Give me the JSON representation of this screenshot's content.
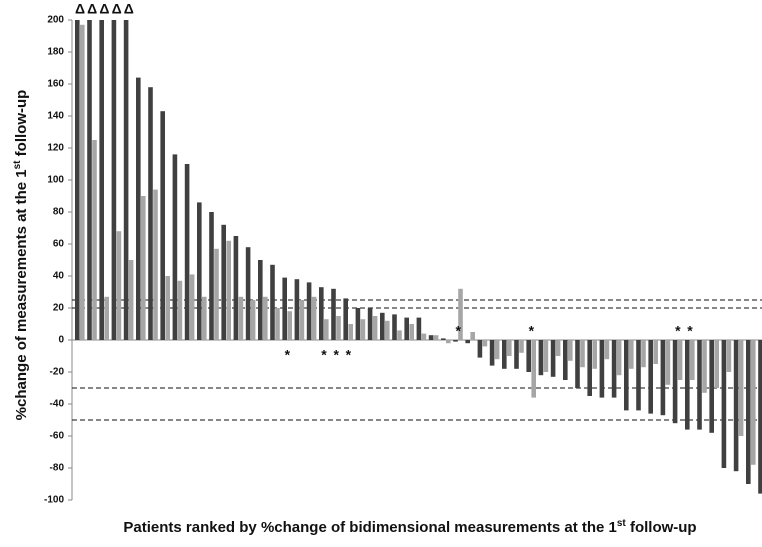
{
  "chart_data": {
    "type": "bar",
    "xlabel": [
      "Patients ranked by %change of bidimensional measurements at the 1",
      "st",
      " follow-up"
    ],
    "ylabel": [
      "%change of measurements at the 1",
      "st",
      " follow-up"
    ],
    "ylim": [
      -100,
      200
    ],
    "yticks": [
      -100,
      -80,
      -60,
      -40,
      -20,
      0,
      20,
      40,
      60,
      80,
      100,
      120,
      140,
      160,
      180,
      200
    ],
    "series": [
      {
        "color": "#404040",
        "values": [
          200,
          200,
          200,
          200,
          200,
          164,
          158,
          143,
          116,
          110,
          86,
          80,
          72,
          65,
          58,
          50,
          47,
          39,
          38,
          36,
          33,
          32,
          26,
          20,
          20,
          17,
          16,
          14,
          14,
          3,
          1,
          -1,
          -2,
          -11,
          -16,
          -18,
          -18,
          -20,
          -22,
          -23,
          -25,
          -30,
          -35,
          -36,
          -36,
          -44,
          -44,
          -46,
          -47,
          -52,
          -56,
          -56,
          -58,
          -80,
          -82,
          -90,
          -96
        ]
      },
      {
        "color": "#a6a6a6",
        "values": [
          197,
          125,
          27,
          68,
          50,
          90,
          94,
          40,
          37,
          41,
          27,
          57,
          62,
          27,
          25,
          27,
          20,
          18,
          25,
          27,
          13,
          15,
          10,
          13,
          15,
          12,
          6,
          10,
          4,
          3,
          -2,
          32,
          5,
          -4,
          -12,
          -10,
          -8,
          -36,
          -20,
          -10,
          -13,
          -17,
          -18,
          -12,
          -22,
          -18,
          -17,
          -15,
          -28,
          -25,
          -25,
          -33,
          -30,
          -20,
          -60,
          -78,
          -55
        ]
      }
    ],
    "reference_lines": [
      25,
      20,
      -30,
      -50
    ],
    "annotations": [
      {
        "text": "Δ",
        "patient": 0
      },
      {
        "text": "Δ",
        "patient": 1
      },
      {
        "text": "Δ",
        "patient": 2
      },
      {
        "text": "Δ",
        "patient": 3
      },
      {
        "text": "Δ",
        "patient": 4
      },
      {
        "text": "*",
        "patient": 17
      },
      {
        "text": "*",
        "patient": 20
      },
      {
        "text": "*",
        "patient": 21
      },
      {
        "text": "*",
        "patient": 22
      },
      {
        "text": "*",
        "patient": 31
      },
      {
        "text": "*",
        "patient": 37
      },
      {
        "text": "*",
        "patient": 49
      },
      {
        "text": "*",
        "patient": 50
      }
    ]
  }
}
